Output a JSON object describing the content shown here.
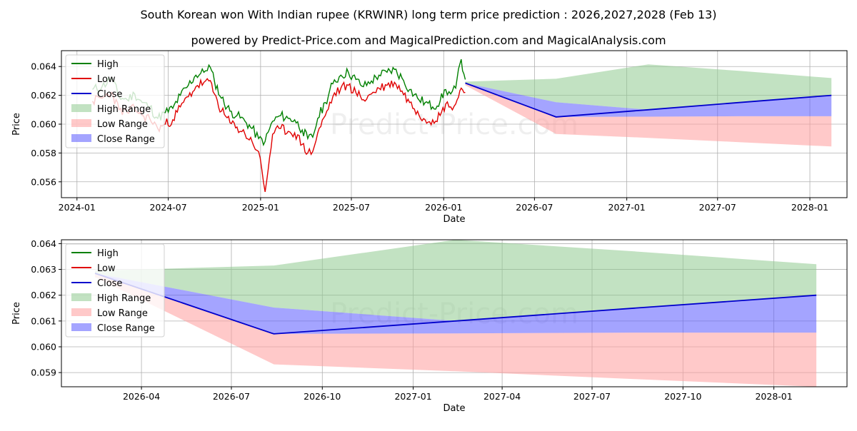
{
  "figure": {
    "title": "South Korean won With Indian rupee (KRWINR) long term price prediction : 2026,2027,2028 (Feb 13)",
    "subtitle": "powered by Predict-Price.com and MagicalPrediction.com and MagicalAnalysis.com",
    "watermark": "Predict-Price.com"
  },
  "colors": {
    "high": "#008000",
    "low": "#e00000",
    "close": "#0000cc",
    "high_range": "#8fca8f",
    "low_range": "#ff9c9c",
    "close_range": "#5a5aff"
  },
  "chart_data": [
    {
      "type": "line",
      "title": "Top panel (full history + forecast)",
      "xlabel": "Date",
      "ylabel": "Price",
      "xlim": [
        "2023-12-01",
        "2028-03-15"
      ],
      "ylim": [
        0.0549,
        0.0651
      ],
      "xticks": [
        {
          "date": "2024-01-01",
          "label": "2024-01"
        },
        {
          "date": "2024-07-01",
          "label": "2024-07"
        },
        {
          "date": "2025-01-01",
          "label": "2025-01"
        },
        {
          "date": "2025-07-01",
          "label": "2025-07"
        },
        {
          "date": "2026-01-01",
          "label": "2026-01"
        },
        {
          "date": "2026-07-01",
          "label": "2026-07"
        },
        {
          "date": "2027-01-01",
          "label": "2027-01"
        },
        {
          "date": "2027-07-01",
          "label": "2027-07"
        },
        {
          "date": "2028-01-01",
          "label": "2028-01"
        }
      ],
      "yticks": [
        {
          "value": 0.056,
          "label": "0.056"
        },
        {
          "value": 0.058,
          "label": "0.058"
        },
        {
          "value": 0.06,
          "label": "0.060"
        },
        {
          "value": 0.062,
          "label": "0.062"
        },
        {
          "value": 0.064,
          "label": "0.064"
        }
      ],
      "grid": true,
      "legend_position": "upper-left",
      "legend": [
        "High",
        "Low",
        "Close",
        "High Range",
        "Low Range",
        "Close Range"
      ],
      "history_dates": [
        "2024-02-01",
        "2024-02-20",
        "2024-03-10",
        "2024-03-25",
        "2024-04-10",
        "2024-04-25",
        "2024-05-10",
        "2024-05-25",
        "2024-06-10",
        "2024-06-25",
        "2024-07-10",
        "2024-07-25",
        "2024-08-10",
        "2024-08-25",
        "2024-09-10",
        "2024-09-20",
        "2024-10-01",
        "2024-10-15",
        "2024-11-01",
        "2024-11-15",
        "2024-12-01",
        "2024-12-15",
        "2024-12-28",
        "2025-01-10",
        "2025-01-25",
        "2025-02-10",
        "2025-02-25",
        "2025-03-10",
        "2025-03-25",
        "2025-04-05",
        "2025-04-15",
        "2025-04-25",
        "2025-05-10",
        "2025-05-25",
        "2025-06-10",
        "2025-06-25",
        "2025-07-10",
        "2025-07-25",
        "2025-08-10",
        "2025-08-25",
        "2025-09-10",
        "2025-09-25",
        "2025-10-10",
        "2025-10-25",
        "2025-11-10",
        "2025-11-25",
        "2025-12-10",
        "2025-12-25",
        "2026-01-05",
        "2026-01-15",
        "2026-01-25",
        "2026-02-05",
        "2026-02-13"
      ],
      "high_history": [
        0.0624,
        0.0626,
        0.0632,
        0.0619,
        0.0617,
        0.0621,
        0.0615,
        0.0612,
        0.0604,
        0.0608,
        0.0611,
        0.062,
        0.0627,
        0.0634,
        0.0636,
        0.0641,
        0.063,
        0.0618,
        0.0609,
        0.0606,
        0.0602,
        0.0597,
        0.059,
        0.0588,
        0.0602,
        0.0606,
        0.0604,
        0.0603,
        0.0596,
        0.059,
        0.0591,
        0.0604,
        0.0615,
        0.0628,
        0.0634,
        0.0636,
        0.0631,
        0.0626,
        0.063,
        0.0634,
        0.0636,
        0.0638,
        0.0632,
        0.0624,
        0.0618,
        0.0615,
        0.0612,
        0.0616,
        0.0624,
        0.0621,
        0.0625,
        0.0645,
        0.0631
      ],
      "low_history": [
        0.0616,
        0.0618,
        0.0622,
        0.061,
        0.0608,
        0.0611,
        0.0606,
        0.0604,
        0.0597,
        0.06,
        0.0603,
        0.0612,
        0.0619,
        0.0626,
        0.0629,
        0.063,
        0.0621,
        0.0609,
        0.0601,
        0.0598,
        0.0593,
        0.0588,
        0.0581,
        0.0553,
        0.0593,
        0.0597,
        0.0595,
        0.0594,
        0.0586,
        0.058,
        0.0581,
        0.0594,
        0.0606,
        0.0619,
        0.0625,
        0.0627,
        0.0622,
        0.0617,
        0.0621,
        0.0625,
        0.0627,
        0.0629,
        0.0623,
        0.0615,
        0.0609,
        0.0603,
        0.0603,
        0.0606,
        0.0614,
        0.0612,
        0.0614,
        0.0625,
        0.0622
      ],
      "forecast_dates": [
        "2026-02-13",
        "2026-08-13",
        "2027-02-13",
        "2027-08-13",
        "2028-02-13"
      ],
      "close_forecast": [
        0.06285,
        0.0605,
        0.061,
        0.0615,
        0.062
      ],
      "high_range_upper": [
        0.06295,
        0.06315,
        0.06415,
        0.0637,
        0.0632
      ],
      "high_range_lower": [
        0.06285,
        0.06152,
        0.061,
        0.0615,
        0.062
      ],
      "close_range_upper": [
        0.06285,
        0.06152,
        0.061,
        0.0615,
        0.062
      ],
      "close_range_lower": [
        0.06285,
        0.0605,
        0.06052,
        0.06055,
        0.06055
      ],
      "low_range_upper": [
        0.06285,
        0.0605,
        0.06052,
        0.06055,
        0.06055
      ],
      "low_range_lower": [
        0.0627,
        0.05932,
        0.05905,
        0.05875,
        0.05845
      ]
    },
    {
      "type": "line",
      "title": "Bottom panel (forecast zoom)",
      "xlabel": "Date",
      "ylabel": "Price",
      "xlim": [
        "2026-01-10",
        "2028-03-15"
      ],
      "ylim": [
        0.05845,
        0.06415
      ],
      "xticks": [
        {
          "date": "2026-04-01",
          "label": "2026-04"
        },
        {
          "date": "2026-07-01",
          "label": "2026-07"
        },
        {
          "date": "2026-10-01",
          "label": "2026-10"
        },
        {
          "date": "2027-01-01",
          "label": "2027-01"
        },
        {
          "date": "2027-04-01",
          "label": "2027-04"
        },
        {
          "date": "2027-07-01",
          "label": "2027-07"
        },
        {
          "date": "2027-10-01",
          "label": "2027-10"
        },
        {
          "date": "2028-01-01",
          "label": "2028-01"
        }
      ],
      "yticks": [
        {
          "value": 0.059,
          "label": "0.059"
        },
        {
          "value": 0.06,
          "label": "0.060"
        },
        {
          "value": 0.061,
          "label": "0.061"
        },
        {
          "value": 0.062,
          "label": "0.062"
        },
        {
          "value": 0.063,
          "label": "0.063"
        },
        {
          "value": 0.064,
          "label": "0.064"
        }
      ],
      "grid": true,
      "legend_position": "upper-left",
      "legend": [
        "High",
        "Low",
        "Close",
        "High Range",
        "Low Range",
        "Close Range"
      ],
      "forecast_dates": [
        "2026-02-13",
        "2026-08-13",
        "2027-02-13",
        "2027-08-13",
        "2028-02-13"
      ],
      "close_forecast": [
        0.06285,
        0.0605,
        0.061,
        0.0615,
        0.062
      ],
      "high_range_upper": [
        0.06295,
        0.06315,
        0.06415,
        0.0637,
        0.0632
      ],
      "high_range_lower": [
        0.06285,
        0.06152,
        0.061,
        0.0615,
        0.062
      ],
      "close_range_upper": [
        0.06285,
        0.06152,
        0.061,
        0.0615,
        0.062
      ],
      "close_range_lower": [
        0.06285,
        0.0605,
        0.06052,
        0.06055,
        0.06055
      ],
      "low_range_upper": [
        0.06285,
        0.0605,
        0.06052,
        0.06055,
        0.06055
      ],
      "low_range_lower": [
        0.0627,
        0.05932,
        0.05905,
        0.05875,
        0.05845
      ]
    }
  ]
}
